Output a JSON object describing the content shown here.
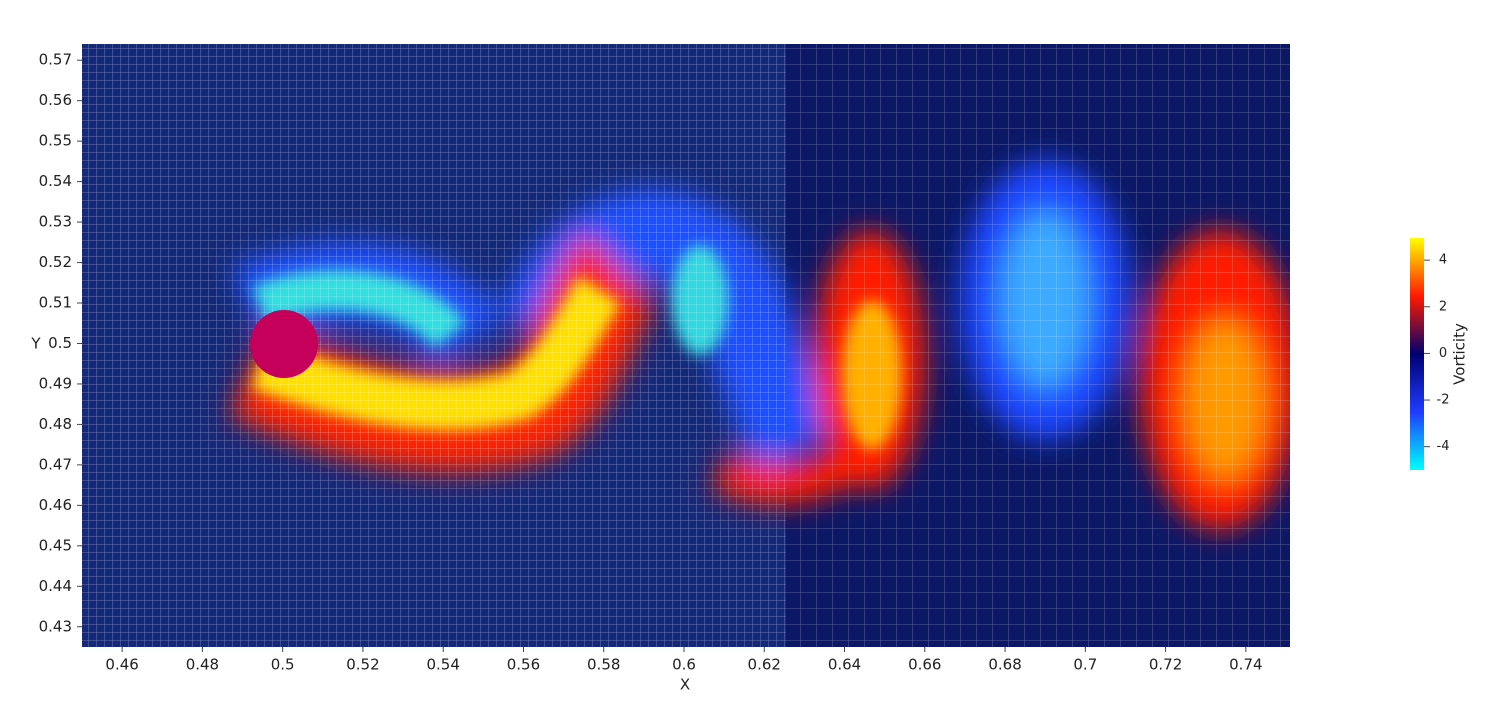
{
  "chart_data": {
    "type": "heatmap",
    "xlabel": "X",
    "ylabel": "Y",
    "xlim": [
      0.45,
      0.751
    ],
    "ylim": [
      0.425,
      0.574
    ],
    "xticks": [
      0.46,
      0.48,
      0.5,
      0.52,
      0.54,
      0.56,
      0.58,
      0.6,
      0.62,
      0.64,
      0.66,
      0.68,
      0.7,
      0.72,
      0.74
    ],
    "yticks": [
      0.43,
      0.44,
      0.45,
      0.46,
      0.47,
      0.48,
      0.49,
      0.5,
      0.51,
      0.52,
      0.53,
      0.54,
      0.55,
      0.56,
      0.57
    ],
    "colorbar": {
      "label": "Vorticity",
      "lim": [
        -5,
        4.95
      ],
      "ticks": [
        -4,
        -2,
        0,
        2,
        4
      ],
      "colors": [
        "#00ffff",
        "#1e3cff",
        "#000070",
        "#ff1a00",
        "#ffff00"
      ]
    }
  }
}
